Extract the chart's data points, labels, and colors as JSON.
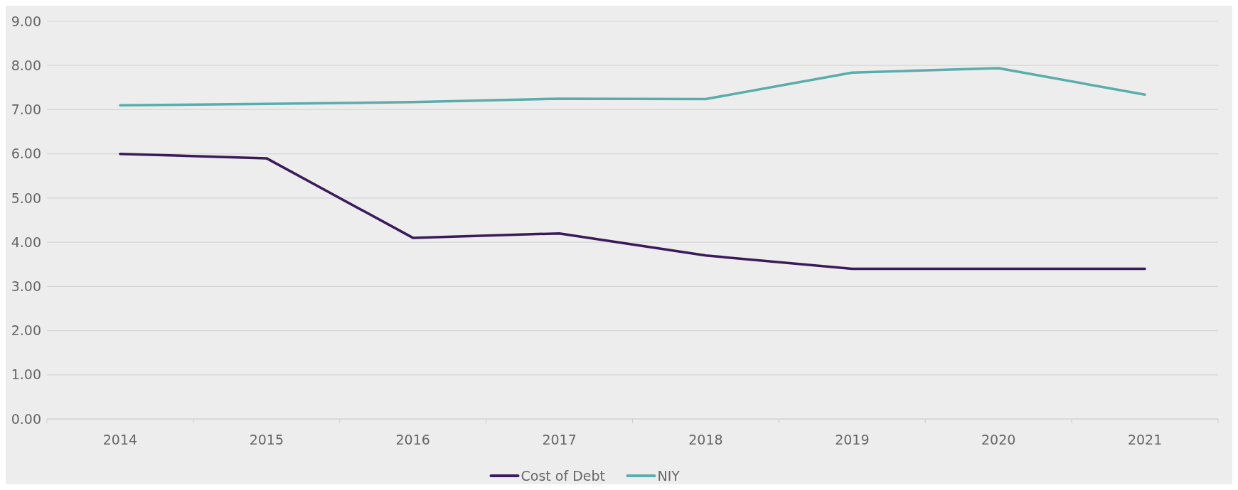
{
  "chart_data": {
    "type": "line",
    "categories": [
      "2014",
      "2015",
      "2016",
      "2017",
      "2018",
      "2019",
      "2020",
      "2021"
    ],
    "series": [
      {
        "name": "Cost of Debt",
        "color": "#3b1a5a",
        "values": [
          6.0,
          5.9,
          4.1,
          4.2,
          3.7,
          3.4,
          3.4,
          3.4
        ]
      },
      {
        "name": "NIY",
        "color": "#5aadab",
        "values": [
          7.1,
          7.13,
          7.17,
          7.25,
          7.24,
          7.84,
          7.94,
          7.34
        ]
      }
    ],
    "ylim": [
      0,
      9
    ],
    "yticks": [
      {
        "value": 0,
        "label": "0.00"
      },
      {
        "value": 1,
        "label": "1.00"
      },
      {
        "value": 2,
        "label": "2.00"
      },
      {
        "value": 3,
        "label": "3.00"
      },
      {
        "value": 4,
        "label": "4.00"
      },
      {
        "value": 5,
        "label": "5.00"
      },
      {
        "value": 6,
        "label": "6.00"
      },
      {
        "value": 7,
        "label": "7.00"
      },
      {
        "value": 8,
        "label": "8.00"
      },
      {
        "value": 9,
        "label": "9.00"
      }
    ],
    "grid": "y",
    "legend": "bottom",
    "marker": "none",
    "line_style": "solid"
  }
}
